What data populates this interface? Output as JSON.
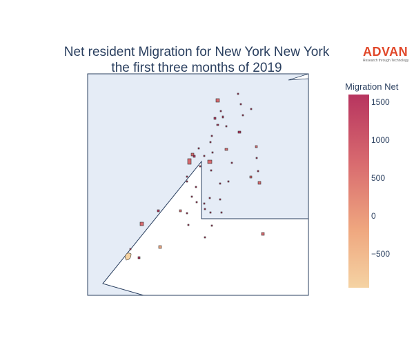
{
  "title": {
    "line1": "Net resident Migration for New York New York",
    "line2": "the first three months of 2019"
  },
  "brand": {
    "name": "ADVAN",
    "tagline": "Research through Technology"
  },
  "colorbar": {
    "title": "Migration Net",
    "ticks": [
      "1500",
      "1000",
      "500",
      "0",
      "−500"
    ],
    "tick_values": [
      1500,
      1000,
      500,
      0,
      -500
    ],
    "range": [
      -950,
      1600
    ],
    "colors": [
      "#b7345f",
      "#d86a6f",
      "#efa77f",
      "#f5d3a3"
    ]
  },
  "map": {
    "land_color": "#ffffff",
    "water_color": "#e5ecf6",
    "border_color": "#2a3f5f",
    "tract_outline": "#2f2f2f"
  }
}
